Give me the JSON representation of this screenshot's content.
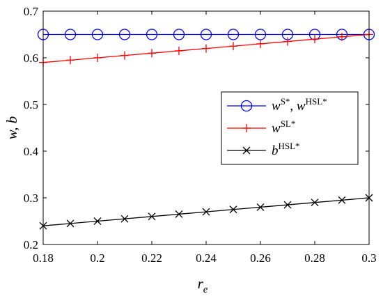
{
  "chart_data": {
    "type": "line",
    "xlabel": "r_e",
    "xlabel_parts": {
      "main": "r",
      "sub": "e"
    },
    "ylabel": "w, b",
    "xlim": [
      0.18,
      0.3
    ],
    "ylim": [
      0.2,
      0.7
    ],
    "xticks": [
      "0.18",
      "0.2",
      "0.22",
      "0.24",
      "0.26",
      "0.28",
      "0.3"
    ],
    "xtick_values": [
      0.18,
      0.2,
      0.22,
      0.24,
      0.26,
      0.28,
      0.3
    ],
    "yticks": [
      "0.2",
      "0.3",
      "0.4",
      "0.5",
      "0.6",
      "0.7"
    ],
    "ytick_values": [
      0.2,
      0.3,
      0.4,
      0.5,
      0.6,
      0.7
    ],
    "grid": false,
    "legend_position": "center-right",
    "x": [
      0.18,
      0.19,
      0.2,
      0.21,
      0.22,
      0.23,
      0.24,
      0.25,
      0.26,
      0.27,
      0.28,
      0.29,
      0.3
    ],
    "series": [
      {
        "name": "w^S*, w^HSL*",
        "legend": [
          {
            "t": "w",
            "i": true
          },
          {
            "t": "S*",
            "sup": true
          },
          {
            "t": ", ",
            "i": false
          },
          {
            "t": "w",
            "i": true
          },
          {
            "t": "HSL*",
            "sup": true
          }
        ],
        "color": "#0000ff",
        "marker": "circle",
        "values": [
          0.65,
          0.65,
          0.65,
          0.65,
          0.65,
          0.65,
          0.65,
          0.65,
          0.65,
          0.65,
          0.65,
          0.65,
          0.65
        ]
      },
      {
        "name": "w^SL*",
        "legend": [
          {
            "t": "w",
            "i": true
          },
          {
            "t": "SL*",
            "sup": true
          }
        ],
        "color": "#ff0000",
        "marker": "plus",
        "values": [
          0.59,
          0.595,
          0.6,
          0.605,
          0.61,
          0.615,
          0.62,
          0.625,
          0.63,
          0.635,
          0.64,
          0.645,
          0.65
        ]
      },
      {
        "name": "b^HSL*",
        "legend": [
          {
            "t": "b",
            "i": true
          },
          {
            "t": "HSL*",
            "sup": true
          }
        ],
        "color": "#000000",
        "marker": "x",
        "values": [
          0.24,
          0.245,
          0.25,
          0.255,
          0.26,
          0.265,
          0.27,
          0.275,
          0.28,
          0.285,
          0.29,
          0.295,
          0.3
        ]
      }
    ]
  }
}
